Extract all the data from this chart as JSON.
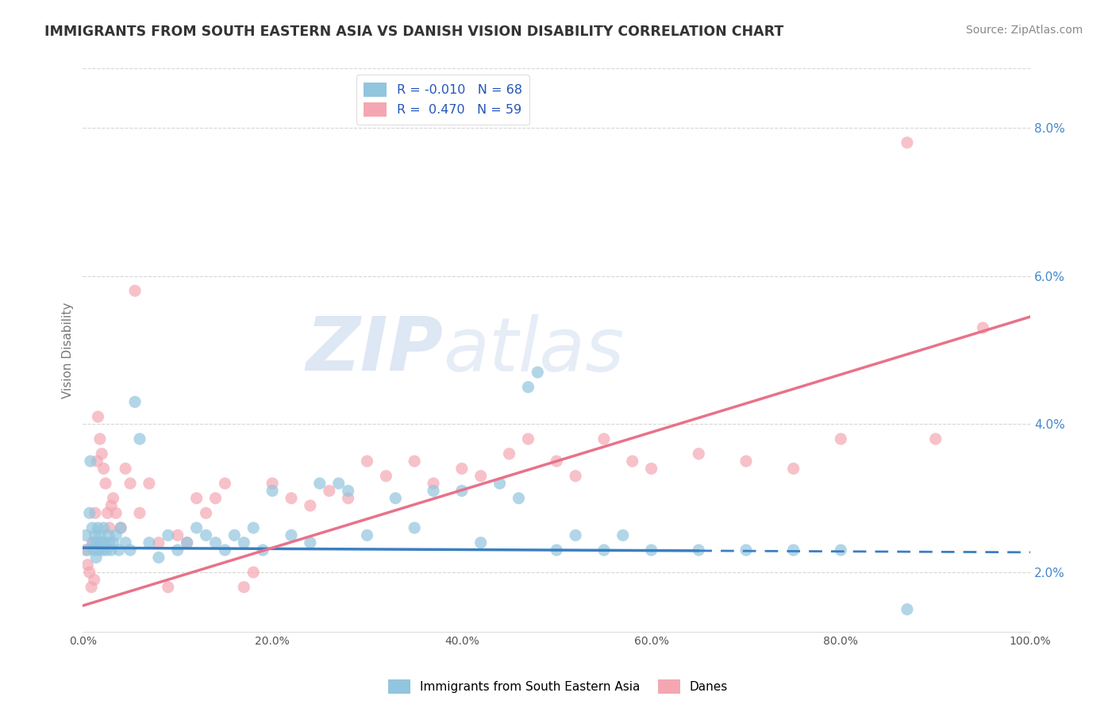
{
  "title": "IMMIGRANTS FROM SOUTH EASTERN ASIA VS DANISH VISION DISABILITY CORRELATION CHART",
  "source": "Source: ZipAtlas.com",
  "xlabel": "",
  "ylabel": "Vision Disability",
  "legend_label_blue": "Immigrants from South Eastern Asia",
  "legend_label_pink": "Danes",
  "R_blue": -0.01,
  "N_blue": 68,
  "R_pink": 0.47,
  "N_pink": 59,
  "xlim": [
    0,
    100
  ],
  "ylim": [
    1.2,
    8.8
  ],
  "yticks": [
    2.0,
    4.0,
    6.0,
    8.0
  ],
  "xticks": [
    0,
    20,
    40,
    60,
    80,
    100
  ],
  "color_blue": "#92c5de",
  "color_pink": "#f4a7b2",
  "trend_blue": "#3a7fc1",
  "trend_pink": "#e8728a",
  "watermark_color": "#c8d8ee",
  "background_color": "#ffffff",
  "grid_color": "#cccccc",
  "blue_trend_solid_end": 65,
  "blue_scatter_x": [
    0.3,
    0.5,
    0.7,
    0.8,
    1.0,
    1.1,
    1.2,
    1.3,
    1.4,
    1.5,
    1.6,
    1.7,
    1.8,
    2.0,
    2.1,
    2.2,
    2.3,
    2.5,
    2.7,
    2.8,
    3.0,
    3.2,
    3.5,
    3.8,
    4.0,
    4.5,
    5.0,
    5.5,
    6.0,
    7.0,
    8.0,
    9.0,
    10.0,
    11.0,
    12.0,
    13.0,
    14.0,
    15.0,
    16.0,
    17.0,
    18.0,
    19.0,
    20.0,
    22.0,
    24.0,
    25.0,
    27.0,
    28.0,
    30.0,
    33.0,
    35.0,
    37.0,
    40.0,
    42.0,
    44.0,
    46.0,
    47.0,
    48.0,
    50.0,
    52.0,
    55.0,
    57.0,
    60.0,
    65.0,
    70.0,
    75.0,
    80.0,
    87.0
  ],
  "blue_scatter_y": [
    2.5,
    2.3,
    2.8,
    3.5,
    2.6,
    2.4,
    2.3,
    2.5,
    2.2,
    2.4,
    2.6,
    2.3,
    2.5,
    2.4,
    2.3,
    2.6,
    2.4,
    2.3,
    2.5,
    2.4,
    2.3,
    2.4,
    2.5,
    2.3,
    2.6,
    2.4,
    2.3,
    4.3,
    3.8,
    2.4,
    2.2,
    2.5,
    2.3,
    2.4,
    2.6,
    2.5,
    2.4,
    2.3,
    2.5,
    2.4,
    2.6,
    2.3,
    3.1,
    2.5,
    2.4,
    3.2,
    3.2,
    3.1,
    2.5,
    3.0,
    2.6,
    3.1,
    3.1,
    2.4,
    3.2,
    3.0,
    4.5,
    4.7,
    2.3,
    2.5,
    2.3,
    2.5,
    2.3,
    2.3,
    2.3,
    2.3,
    2.3,
    1.5
  ],
  "pink_scatter_x": [
    0.3,
    0.5,
    0.7,
    0.9,
    1.0,
    1.2,
    1.3,
    1.5,
    1.6,
    1.8,
    2.0,
    2.2,
    2.4,
    2.6,
    2.8,
    3.0,
    3.2,
    3.5,
    4.0,
    4.5,
    5.0,
    5.5,
    6.0,
    7.0,
    8.0,
    9.0,
    10.0,
    11.0,
    12.0,
    13.0,
    14.0,
    15.0,
    17.0,
    18.0,
    20.0,
    22.0,
    24.0,
    26.0,
    28.0,
    30.0,
    32.0,
    35.0,
    37.0,
    40.0,
    42.0,
    45.0,
    47.0,
    50.0,
    52.0,
    55.0,
    58.0,
    60.0,
    65.0,
    70.0,
    75.0,
    80.0,
    87.0,
    90.0,
    95.0
  ],
  "pink_scatter_y": [
    2.3,
    2.1,
    2.0,
    1.8,
    2.4,
    1.9,
    2.8,
    3.5,
    4.1,
    3.8,
    3.6,
    3.4,
    3.2,
    2.8,
    2.6,
    2.9,
    3.0,
    2.8,
    2.6,
    3.4,
    3.2,
    5.8,
    2.8,
    3.2,
    2.4,
    1.8,
    2.5,
    2.4,
    3.0,
    2.8,
    3.0,
    3.2,
    1.8,
    2.0,
    3.2,
    3.0,
    2.9,
    3.1,
    3.0,
    3.5,
    3.3,
    3.5,
    3.2,
    3.4,
    3.3,
    3.6,
    3.8,
    3.5,
    3.3,
    3.8,
    3.5,
    3.4,
    3.6,
    3.5,
    3.4,
    3.8,
    7.8,
    3.8,
    5.3
  ],
  "blue_trend_x0": 0,
  "blue_trend_x1": 100,
  "blue_trend_y0": 2.33,
  "blue_trend_y1": 2.27,
  "pink_trend_x0": 0,
  "pink_trend_x1": 100,
  "pink_trend_y0": 1.55,
  "pink_trend_y1": 5.45
}
